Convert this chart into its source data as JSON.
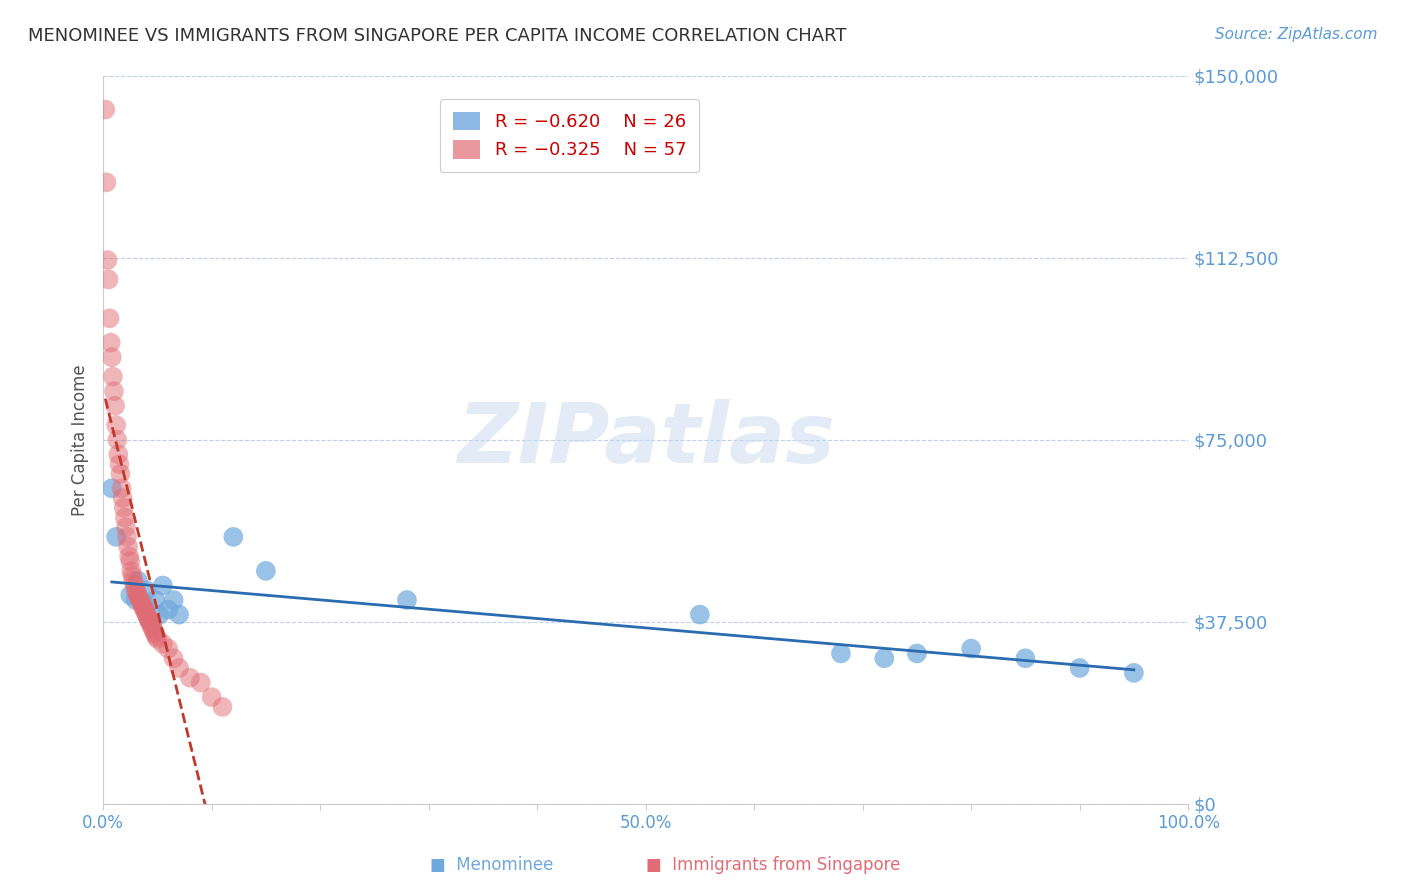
{
  "title": "MENOMINEE VS IMMIGRANTS FROM SINGAPORE PER CAPITA INCOME CORRELATION CHART",
  "source": "Source: ZipAtlas.com",
  "ylabel": "Per Capita Income",
  "xlabel": "",
  "xlim": [
    0.0,
    1.0
  ],
  "ylim": [
    0,
    150000
  ],
  "yticks": [
    0,
    37500,
    75000,
    112500,
    150000
  ],
  "ytick_labels": [
    "$0",
    "$37,500",
    "$75,000",
    "$112,500",
    "$150,000"
  ],
  "xticks": [
    0.0,
    0.1,
    0.2,
    0.3,
    0.4,
    0.5,
    0.6,
    0.7,
    0.8,
    0.9,
    1.0
  ],
  "xtick_labels": [
    "0.0%",
    "",
    "",
    "",
    "",
    "50.0%",
    "",
    "",
    "",
    "",
    "100.0%"
  ],
  "blue_color": "#6fa8dc",
  "pink_color": "#e06c75",
  "blue_line_color": "#2b6cb0",
  "pink_line_color": "#c0392b",
  "title_color": "#333333",
  "axis_color": "#5b9bd5",
  "grid_color": "#c0cfe8",
  "legend_r1": "R = −0.620",
  "legend_n1": "N = 26",
  "legend_r2": "R = −0.325",
  "legend_n2": "N = 57",
  "watermark": "ZIPatlas",
  "menominee_x": [
    0.008,
    0.012,
    0.025,
    0.03,
    0.032,
    0.038,
    0.04,
    0.042,
    0.045,
    0.048,
    0.052,
    0.055,
    0.06,
    0.065,
    0.07,
    0.12,
    0.15,
    0.28,
    0.55,
    0.68,
    0.72,
    0.75,
    0.8,
    0.85,
    0.9,
    0.95
  ],
  "menominee_y": [
    65000,
    55000,
    43000,
    42000,
    46000,
    41000,
    44000,
    38000,
    37000,
    42000,
    39000,
    45000,
    40000,
    42000,
    39000,
    55000,
    48000,
    42000,
    39000,
    31000,
    30000,
    31000,
    32000,
    30000,
    28000,
    27000
  ],
  "singapore_x": [
    0.002,
    0.003,
    0.004,
    0.005,
    0.006,
    0.007,
    0.008,
    0.009,
    0.01,
    0.011,
    0.012,
    0.013,
    0.014,
    0.015,
    0.016,
    0.017,
    0.018,
    0.019,
    0.02,
    0.021,
    0.022,
    0.023,
    0.024,
    0.025,
    0.026,
    0.027,
    0.028,
    0.029,
    0.03,
    0.031,
    0.032,
    0.033,
    0.034,
    0.035,
    0.036,
    0.037,
    0.038,
    0.039,
    0.04,
    0.041,
    0.042,
    0.043,
    0.044,
    0.045,
    0.046,
    0.047,
    0.048,
    0.049,
    0.05,
    0.055,
    0.06,
    0.065,
    0.07,
    0.08,
    0.09,
    0.1,
    0.11
  ],
  "singapore_y": [
    143000,
    128000,
    112000,
    108000,
    100000,
    95000,
    92000,
    88000,
    85000,
    82000,
    78000,
    75000,
    72000,
    70000,
    68000,
    65000,
    63000,
    61000,
    59000,
    57000,
    55000,
    53000,
    51000,
    50000,
    48000,
    47000,
    46000,
    45000,
    44000,
    43500,
    43000,
    42500,
    42000,
    41500,
    41000,
    40500,
    40000,
    39500,
    39000,
    38500,
    38000,
    37500,
    37000,
    36500,
    36000,
    35500,
    35000,
    34500,
    34000,
    33000,
    32000,
    30000,
    28000,
    26000,
    25000,
    22000,
    20000
  ]
}
